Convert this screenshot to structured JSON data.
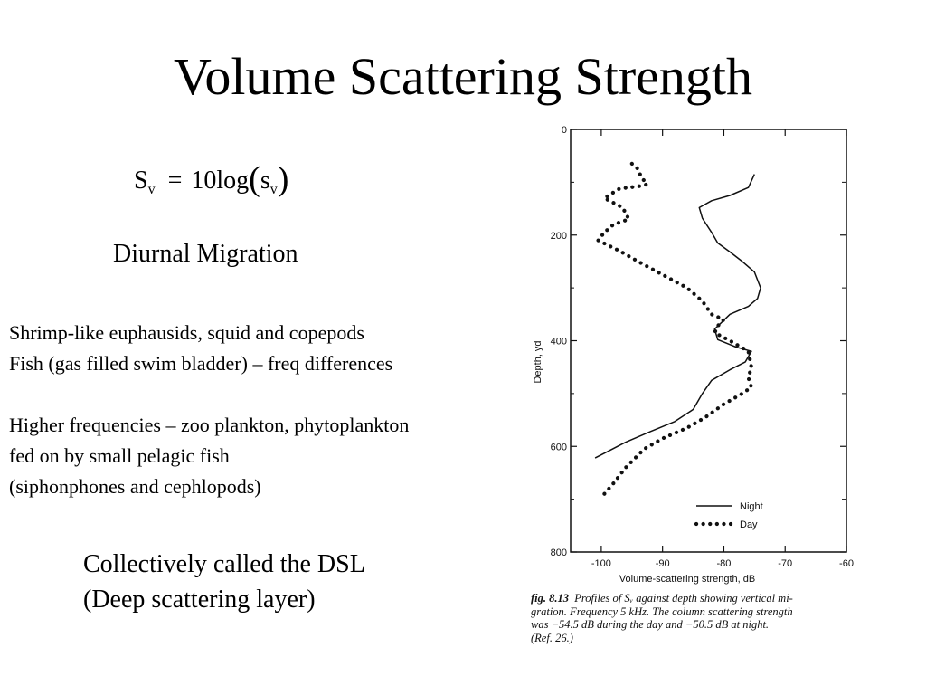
{
  "slide": {
    "title": "Volume Scattering Strength",
    "formula": {
      "lhs_main": "S",
      "lhs_sub": "v",
      "equals": "=",
      "coeff": "10",
      "func": "log",
      "open_paren": "(",
      "arg_main": "s",
      "arg_sub": "v",
      "close_paren": ")"
    },
    "heading": "Diurnal Migration",
    "para1": [
      "Shrimp-like euphausids, squid and copepods",
      "Fish (gas filled swim bladder) – freq differences"
    ],
    "para2": [
      "Higher frequencies – zoo plankton, phytoplankton",
      "fed on by small pelagic fish",
      "(siphonphones and cephlopods)"
    ],
    "dsl": [
      "Collectively called the DSL",
      "(Deep scattering layer)"
    ]
  },
  "caption": {
    "label": "fig. 8.13",
    "lines": [
      "Profiles of Sᵥ against depth showing vertical mi-",
      "gration. Frequency 5 kHz. The column scattering strength",
      "was −54.5 dB during the day and −50.5 dB at night.",
      "(Ref. 26.)"
    ]
  },
  "chart_data": {
    "type": "line",
    "xlabel": "Volume-scattering strength, dB",
    "ylabel": "Depth, yd",
    "xlim": [
      -105,
      -60
    ],
    "ylim": [
      0,
      800
    ],
    "y_inverted": true,
    "xticks": [
      -100,
      -90,
      -80,
      -70,
      -60
    ],
    "yticks": [
      0,
      200,
      400,
      600,
      800
    ],
    "legend_position": "bottom-right",
    "series": [
      {
        "name": "Night",
        "style": "solid",
        "points": [
          [
            -75,
            85
          ],
          [
            -76,
            110
          ],
          [
            -79,
            125
          ],
          [
            -82,
            135
          ],
          [
            -84,
            148
          ],
          [
            -83.5,
            168
          ],
          [
            -82,
            195
          ],
          [
            -81,
            215
          ],
          [
            -79,
            232
          ],
          [
            -77,
            250
          ],
          [
            -75,
            270
          ],
          [
            -74,
            300
          ],
          [
            -74.5,
            320
          ],
          [
            -76,
            335
          ],
          [
            -79,
            350
          ],
          [
            -81.5,
            378
          ],
          [
            -81,
            398
          ],
          [
            -78,
            412
          ],
          [
            -75.5,
            420
          ],
          [
            -76.5,
            440
          ],
          [
            -79,
            455
          ],
          [
            -82,
            475
          ],
          [
            -83.5,
            500
          ],
          [
            -85,
            530
          ],
          [
            -88,
            553
          ],
          [
            -92,
            572
          ],
          [
            -96,
            592
          ],
          [
            -99,
            610
          ],
          [
            -101,
            622
          ]
        ]
      },
      {
        "name": "Day",
        "style": "dotted",
        "points": [
          [
            -95,
            65
          ],
          [
            -94,
            75
          ],
          [
            -93.5,
            90
          ],
          [
            -92.5,
            104
          ],
          [
            -94,
            108
          ],
          [
            -97,
            112
          ],
          [
            -99.5,
            130
          ],
          [
            -96.5,
            148
          ],
          [
            -95.5,
            170
          ],
          [
            -98,
            180
          ],
          [
            -99.5,
            195
          ],
          [
            -100.5,
            210
          ],
          [
            -97,
            230
          ],
          [
            -94,
            250
          ],
          [
            -90,
            275
          ],
          [
            -86,
            300
          ],
          [
            -83.5,
            325
          ],
          [
            -82,
            350
          ],
          [
            -80,
            360
          ],
          [
            -81,
            372
          ],
          [
            -81.5,
            385
          ],
          [
            -79,
            400
          ],
          [
            -76,
            420
          ],
          [
            -75.5,
            450
          ],
          [
            -76,
            470
          ],
          [
            -75.5,
            488
          ],
          [
            -77,
            500
          ],
          [
            -80,
            520
          ],
          [
            -83,
            545
          ],
          [
            -86,
            565
          ],
          [
            -90,
            585
          ],
          [
            -93,
            605
          ],
          [
            -96,
            640
          ],
          [
            -98,
            670
          ],
          [
            -99.5,
            690
          ]
        ]
      }
    ]
  }
}
